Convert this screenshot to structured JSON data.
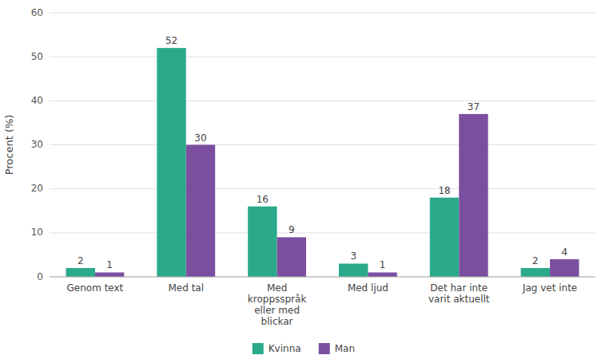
{
  "chart_data": {
    "type": "bar",
    "categories": [
      "Genom text",
      "Med tal",
      "Med\nkroppsspråk\neller med\nblickar",
      "Med ljud",
      "Det har inte\nvarit aktuellt",
      "Jag vet inte"
    ],
    "series": [
      {
        "name": "Kvinna",
        "color": "#2aaa8a",
        "values": [
          2,
          52,
          16,
          3,
          18,
          2
        ]
      },
      {
        "name": "Man",
        "color": "#7b4fa0",
        "values": [
          1,
          30,
          9,
          1,
          37,
          4
        ]
      }
    ],
    "y_label": "Procent (%)",
    "ylim": [
      0,
      60
    ],
    "yticks": [
      0,
      10,
      20,
      30,
      40,
      50,
      60
    ],
    "grid": true,
    "data_labels": true,
    "legend": "bottom"
  }
}
